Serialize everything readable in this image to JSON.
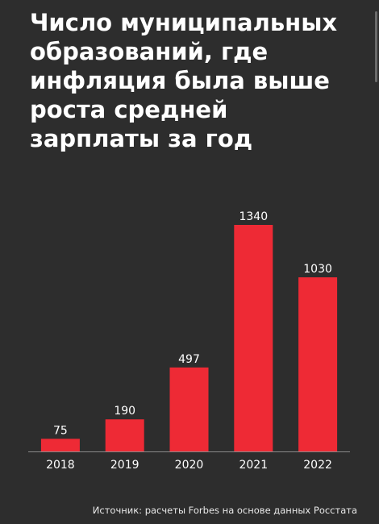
{
  "title": "Число муниципальных образований, где инфляция была выше роста средней зарплаты за год",
  "source": "Источник: расчеты Forbes на основе данных Росстата",
  "colors": {
    "background": "#2d2d2d",
    "bar": "#ee2a35",
    "text": "#ffffff",
    "axis": "#8a8a8a"
  },
  "chart_data": {
    "type": "bar",
    "title": "Число муниципальных образований, где инфляция была выше роста средней зарплаты за год",
    "categories": [
      "2018",
      "2019",
      "2020",
      "2021",
      "2022"
    ],
    "values": [
      75,
      190,
      497,
      1340,
      1030
    ],
    "data_labels": [
      "75",
      "190",
      "497",
      "1340",
      "1030"
    ],
    "xlabel": "",
    "ylabel": "",
    "ylim": [
      0,
      1340
    ],
    "grid": false,
    "legend": "none"
  }
}
